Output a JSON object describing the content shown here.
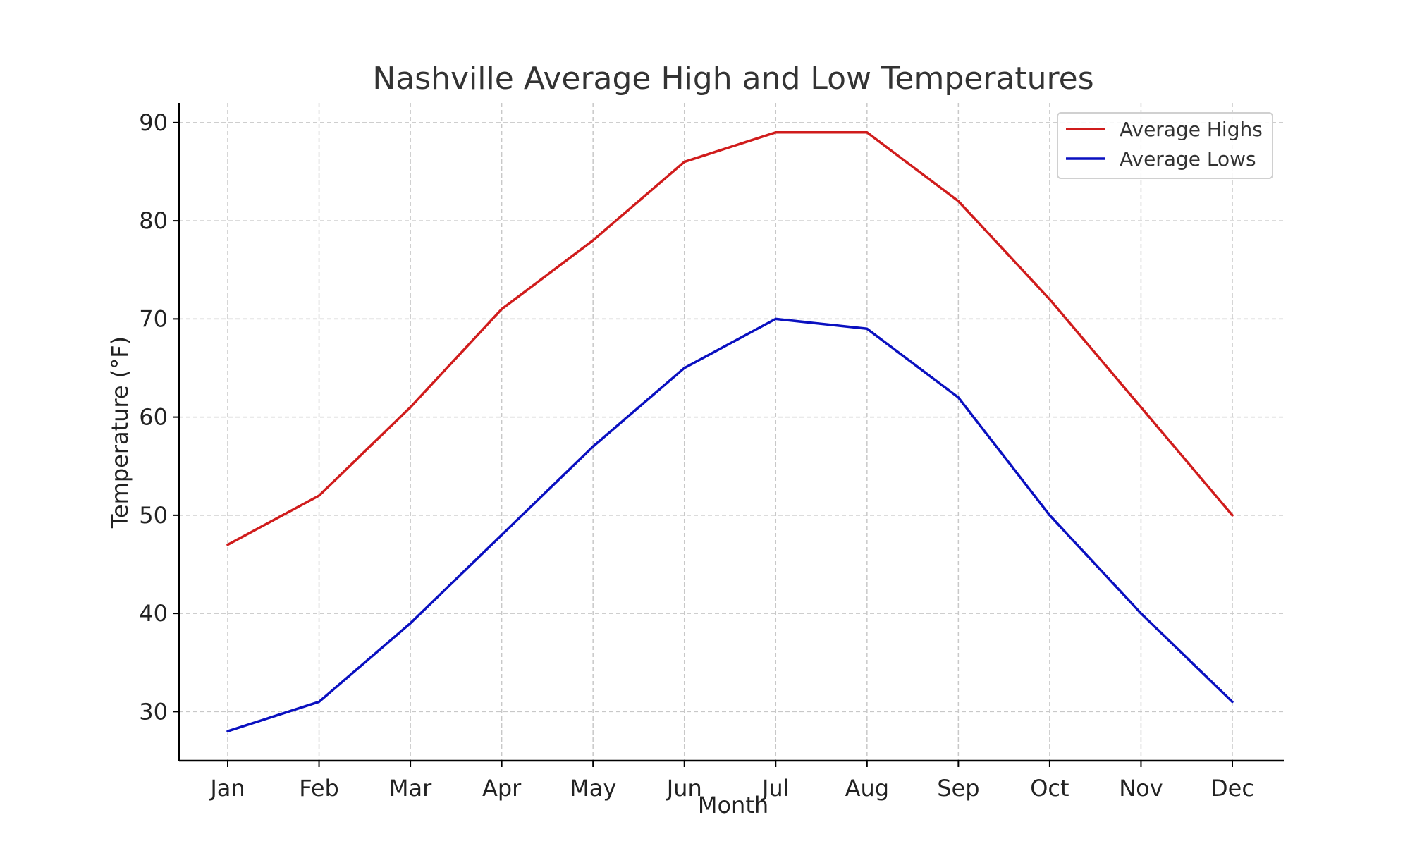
{
  "chart_data": {
    "type": "line",
    "title": "Nashville Average High and Low Temperatures",
    "xlabel": "Month",
    "ylabel": "Temperature (°F)",
    "categories": [
      "Jan",
      "Feb",
      "Mar",
      "Apr",
      "May",
      "Jun",
      "Jul",
      "Aug",
      "Sep",
      "Oct",
      "Nov",
      "Dec"
    ],
    "ylim": [
      25,
      92
    ],
    "yticks": [
      30,
      40,
      50,
      60,
      70,
      80,
      90
    ],
    "grid": true,
    "legend_position": "top-right",
    "series": [
      {
        "name": "Average Highs",
        "color": "#d01c1c",
        "values": [
          47,
          52,
          61,
          71,
          78,
          86,
          89,
          89,
          82,
          72,
          61,
          50
        ]
      },
      {
        "name": "Average Lows",
        "color": "#0a10c0",
        "values": [
          28,
          31,
          39,
          48,
          57,
          65,
          70,
          69,
          62,
          50,
          40,
          31
        ]
      }
    ]
  }
}
